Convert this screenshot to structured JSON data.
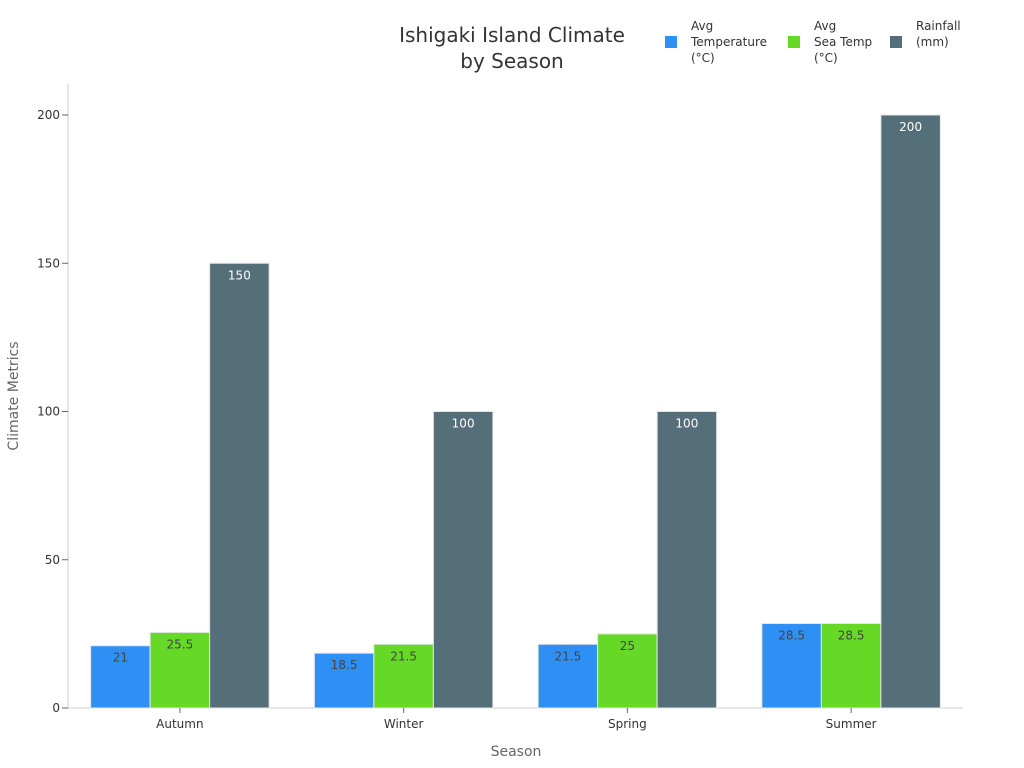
{
  "chart_data": {
    "type": "bar",
    "title": "Ishigaki Island Climate by Season",
    "title_lines": [
      "Ishigaki Island Climate",
      "by Season"
    ],
    "xlabel": "Season",
    "ylabel": "Climate Metrics",
    "categories": [
      "Autumn",
      "Winter",
      "Spring",
      "Summer"
    ],
    "series": [
      {
        "name": "Avg Temperature (°C)",
        "legend_lines": [
          "Avg",
          "Temperature",
          "(°C)"
        ],
        "color": "#2e8ff5",
        "label_color": "#444444",
        "values": [
          21,
          18.5,
          21.5,
          28.5
        ]
      },
      {
        "name": "Avg Sea Temp (°C)",
        "legend_lines": [
          "Avg",
          "Sea Temp",
          "(°C)"
        ],
        "color": "#66d927",
        "label_color": "#444444",
        "values": [
          25.5,
          21.5,
          25,
          28.5
        ]
      },
      {
        "name": "Rainfall (mm)",
        "legend_lines": [
          "Rainfall",
          "(mm)"
        ],
        "color": "#546e7a",
        "label_color": "#ffffff",
        "values": [
          150,
          100,
          100,
          200
        ]
      }
    ],
    "ylim": [
      0,
      210
    ],
    "yticks": [
      0,
      50,
      100,
      150,
      200
    ],
    "grid": false,
    "legend_position": "top-right"
  }
}
